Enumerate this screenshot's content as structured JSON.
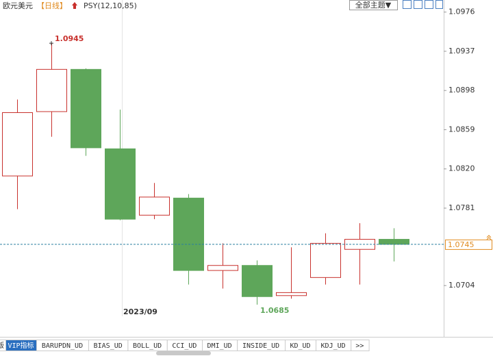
{
  "chart_data": {
    "type": "candlestick",
    "title": "欧元美元",
    "period": "【日线】",
    "indicator": "PSY(12,10,85)",
    "categories": [
      null,
      null,
      null,
      null,
      null,
      null,
      null,
      null,
      null,
      null,
      null,
      null
    ],
    "period_label": "2023/09",
    "open": [
      1.0813,
      1.0877,
      1.0919,
      1.084,
      1.0774,
      1.0791,
      1.0719,
      1.0724,
      1.0694,
      1.0712,
      1.074,
      1.075
    ],
    "high": [
      1.0889,
      1.0945,
      1.092,
      1.0879,
      1.0806,
      1.0795,
      1.0746,
      1.0729,
      1.0742,
      1.0756,
      1.0766,
      1.0761
    ],
    "low": [
      1.078,
      1.0852,
      1.0833,
      1.0769,
      1.077,
      1.0705,
      1.0701,
      1.0685,
      1.0691,
      1.0705,
      1.0705,
      1.0728
    ],
    "close": [
      1.0876,
      1.0919,
      1.0841,
      1.077,
      1.0792,
      1.0719,
      1.0724,
      1.0693,
      1.0697,
      1.0746,
      1.075,
      1.0745
    ],
    "up_color": "#c8302c",
    "down_color": "#5ea65a",
    "ylim": [
      1.0653,
      1.0988
    ],
    "yticks": [
      1.0976,
      1.0937,
      1.0898,
      1.0859,
      {
        "value": 1.082,
        "label": "1.0820"
      },
      1.0781,
      1.0704
    ]
  },
  "toolbar": {
    "theme_button": "全部主题▼"
  },
  "tabs": [
    "版",
    "VIP指标",
    "BARUPDN_UD",
    "BIAS_UD",
    "BOLL_UD",
    "CCI_UD",
    "DMI_UD",
    "INSIDE_UD",
    "KD_UD",
    "KDJ_UD",
    ">>"
  ]
}
